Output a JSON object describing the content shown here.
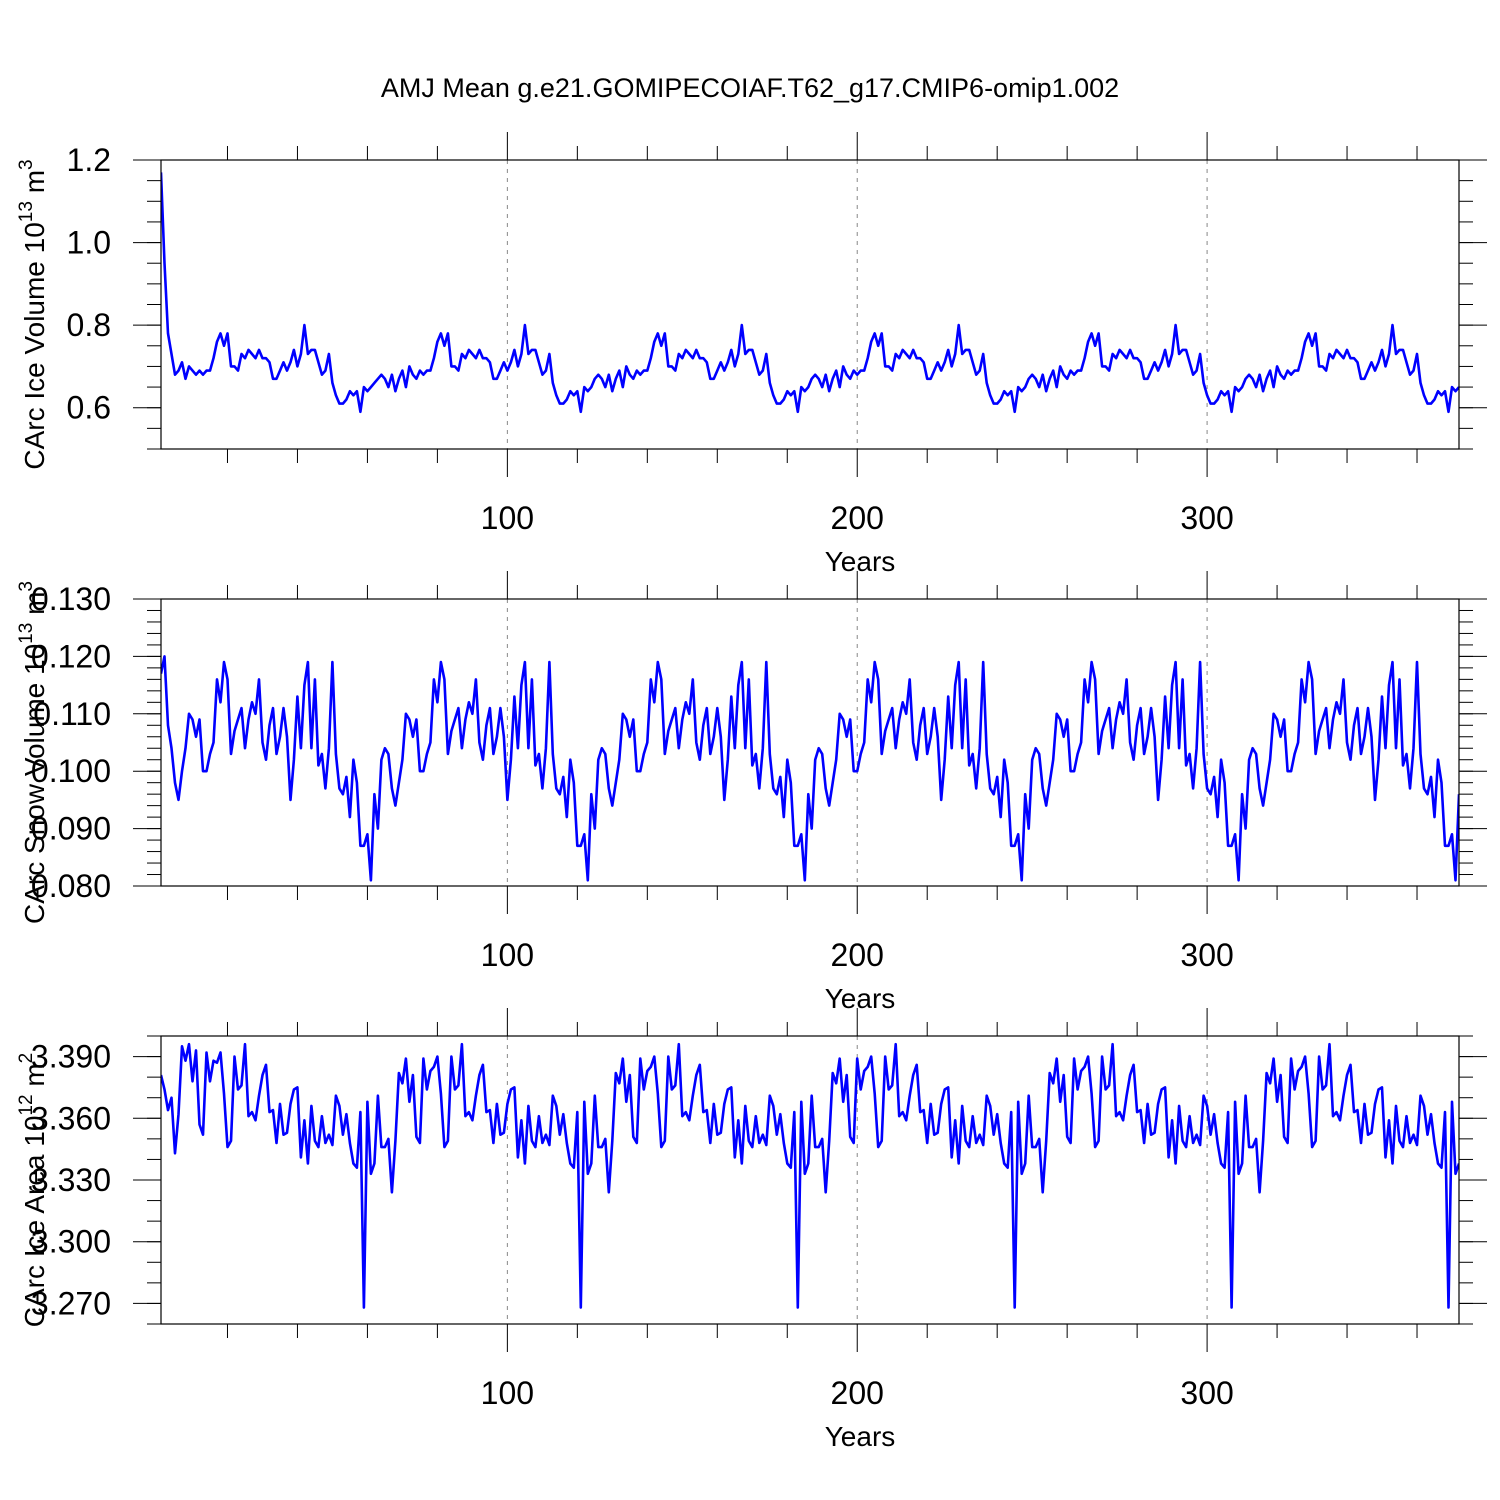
{
  "title": "AMJ Mean g.e21.GOMIPECOIAF.T62_g17.CMIP6-omip1.002",
  "colors": {
    "series": "#0000ff",
    "axes": "#000000",
    "gridline": "#888888"
  },
  "chart_data": [
    {
      "type": "line",
      "title": "",
      "xlabel": "Years",
      "ylabel": "CArc Ice Volume 10",
      "ylabel_exp": "13",
      "ylabel_unit": " m",
      "ylabel_unit_exp": "3",
      "xlim": [
        1,
        372
      ],
      "ylim": [
        0.5,
        1.2
      ],
      "x_ticks": [
        100,
        200,
        300
      ],
      "x_tick_labels": [
        "100",
        "200",
        "300"
      ],
      "y_ticks": [
        0.6,
        0.8,
        1.0,
        1.2
      ],
      "y_tick_labels": [
        "0.6",
        "0.8",
        "1.0",
        "1.2"
      ],
      "y_minor_step": 0.05,
      "grid_x": [
        100,
        200,
        300
      ],
      "cycle": {
        "start_year": 1,
        "length": 62,
        "first_cycle_values": [
          1.17,
          0.95,
          0.78,
          0.73,
          0.68,
          0.69,
          0.71,
          0.67,
          0.7,
          0.69,
          0.68,
          0.69,
          0.68,
          0.69,
          0.69,
          0.72,
          0.76,
          0.78,
          0.75,
          0.78,
          0.7,
          0.7,
          0.69,
          0.73,
          0.72,
          0.74,
          0.73,
          0.72,
          0.74,
          0.72,
          0.72,
          0.71,
          0.67,
          0.67,
          0.69,
          0.71,
          0.69,
          0.71,
          0.74,
          0.7,
          0.73,
          0.8,
          0.73,
          0.74,
          0.74,
          0.71,
          0.68,
          0.69,
          0.73,
          0.66,
          0.63,
          0.61,
          0.61,
          0.62,
          0.64,
          0.63,
          0.64,
          0.59,
          0.65,
          0.64,
          0.65,
          0.66
        ],
        "cycle_values": [
          0.67,
          0.68,
          0.67,
          0.65,
          0.68,
          0.64,
          0.67,
          0.69,
          0.65,
          0.7,
          0.68,
          0.67,
          0.69,
          0.68,
          0.69,
          0.69,
          0.72,
          0.76,
          0.78,
          0.75,
          0.78,
          0.7,
          0.7,
          0.69,
          0.73,
          0.72,
          0.74,
          0.73,
          0.72,
          0.74,
          0.72,
          0.72,
          0.71,
          0.67,
          0.67,
          0.69,
          0.71,
          0.69,
          0.71,
          0.74,
          0.7,
          0.73,
          0.8,
          0.73,
          0.74,
          0.74,
          0.71,
          0.68,
          0.69,
          0.73,
          0.66,
          0.63,
          0.61,
          0.61,
          0.62,
          0.64,
          0.63,
          0.64,
          0.59,
          0.65,
          0.64,
          0.65
        ]
      }
    },
    {
      "type": "line",
      "title": "",
      "xlabel": "Years",
      "ylabel": "CArc Snow Volume 10",
      "ylabel_exp": "13",
      "ylabel_unit": " m",
      "ylabel_unit_exp": "3",
      "xlim": [
        1,
        372
      ],
      "ylim": [
        0.08,
        0.13
      ],
      "x_ticks": [
        100,
        200,
        300
      ],
      "x_tick_labels": [
        "100",
        "200",
        "300"
      ],
      "y_ticks": [
        0.08,
        0.09,
        0.1,
        0.11,
        0.12,
        0.13
      ],
      "y_tick_labels": [
        "0.080",
        "0.090",
        "0.100",
        "0.110",
        "0.120",
        "0.130"
      ],
      "y_minor_step": 0.002,
      "grid_x": [
        100,
        200,
        300
      ],
      "cycle": {
        "start_year": 1,
        "length": 62,
        "first_cycle_values": [
          0.117,
          0.12,
          0.108,
          0.104,
          0.098,
          0.095,
          0.1,
          0.104,
          0.11,
          0.109,
          0.106,
          0.109,
          0.1,
          0.1,
          0.103,
          0.105,
          0.116,
          0.112,
          0.119,
          0.116,
          0.103,
          0.107,
          0.109,
          0.111,
          0.104,
          0.109,
          0.112,
          0.11,
          0.116,
          0.105,
          0.102,
          0.108,
          0.111,
          0.103,
          0.106,
          0.111,
          0.106,
          0.095,
          0.102,
          0.113,
          0.104,
          0.115,
          0.119,
          0.104,
          0.116,
          0.101,
          0.103,
          0.097,
          0.104,
          0.119,
          0.103,
          0.097,
          0.096,
          0.099,
          0.092,
          0.102,
          0.098,
          0.087,
          0.087,
          0.089,
          0.081,
          0.096
        ],
        "cycle_values": [
          0.09,
          0.102,
          0.104,
          0.103,
          0.097,
          0.094,
          0.098,
          0.102,
          0.11,
          0.109,
          0.106,
          0.109,
          0.1,
          0.1,
          0.103,
          0.105,
          0.116,
          0.112,
          0.119,
          0.116,
          0.103,
          0.107,
          0.109,
          0.111,
          0.104,
          0.109,
          0.112,
          0.11,
          0.116,
          0.105,
          0.102,
          0.108,
          0.111,
          0.103,
          0.106,
          0.111,
          0.106,
          0.095,
          0.102,
          0.113,
          0.104,
          0.115,
          0.119,
          0.104,
          0.116,
          0.101,
          0.103,
          0.097,
          0.104,
          0.119,
          0.103,
          0.097,
          0.096,
          0.099,
          0.092,
          0.102,
          0.098,
          0.087,
          0.087,
          0.089,
          0.081,
          0.096
        ]
      }
    },
    {
      "type": "line",
      "title": "",
      "xlabel": "Years",
      "ylabel": "CArc Ice Area 10",
      "ylabel_exp": "12",
      "ylabel_unit": " m",
      "ylabel_unit_exp": "2",
      "xlim": [
        1,
        372
      ],
      "ylim": [
        3.26,
        3.4
      ],
      "x_ticks": [
        100,
        200,
        300
      ],
      "x_tick_labels": [
        "100",
        "200",
        "300"
      ],
      "y_ticks": [
        3.27,
        3.3,
        3.33,
        3.36,
        3.39
      ],
      "y_tick_labels": [
        "3.270",
        "3.300",
        "3.330",
        "3.360",
        "3.390"
      ],
      "y_minor_step": 0.01,
      "grid_x": [
        100,
        200,
        300
      ],
      "cycle": {
        "start_year": 1,
        "length": 62,
        "first_cycle_values": [
          3.381,
          3.374,
          3.364,
          3.37,
          3.343,
          3.362,
          3.395,
          3.388,
          3.396,
          3.378,
          3.393,
          3.357,
          3.352,
          3.392,
          3.378,
          3.388,
          3.387,
          3.392,
          3.372,
          3.346,
          3.349,
          3.39,
          3.374,
          3.376,
          3.396,
          3.361,
          3.363,
          3.359,
          3.371,
          3.381,
          3.386,
          3.363,
          3.364,
          3.348,
          3.367,
          3.352,
          3.353,
          3.367,
          3.374,
          3.375,
          3.341,
          3.359,
          3.338,
          3.366,
          3.349,
          3.346,
          3.361,
          3.348,
          3.352,
          3.347,
          3.371,
          3.366,
          3.352,
          3.362,
          3.348,
          3.338,
          3.336,
          3.363,
          3.268,
          3.368,
          3.333,
          3.338
        ],
        "cycle_values": [
          3.371,
          3.346,
          3.346,
          3.35,
          3.324,
          3.349,
          3.382,
          3.377,
          3.389,
          3.368,
          3.381,
          3.351,
          3.348,
          3.389,
          3.374,
          3.383,
          3.385,
          3.39,
          3.372,
          3.346,
          3.349,
          3.39,
          3.374,
          3.376,
          3.396,
          3.361,
          3.363,
          3.359,
          3.371,
          3.381,
          3.386,
          3.363,
          3.364,
          3.348,
          3.367,
          3.352,
          3.353,
          3.367,
          3.374,
          3.375,
          3.341,
          3.359,
          3.338,
          3.366,
          3.349,
          3.346,
          3.361,
          3.348,
          3.352,
          3.347,
          3.371,
          3.366,
          3.352,
          3.362,
          3.348,
          3.338,
          3.336,
          3.363,
          3.268,
          3.368,
          3.333,
          3.338
        ]
      }
    }
  ]
}
